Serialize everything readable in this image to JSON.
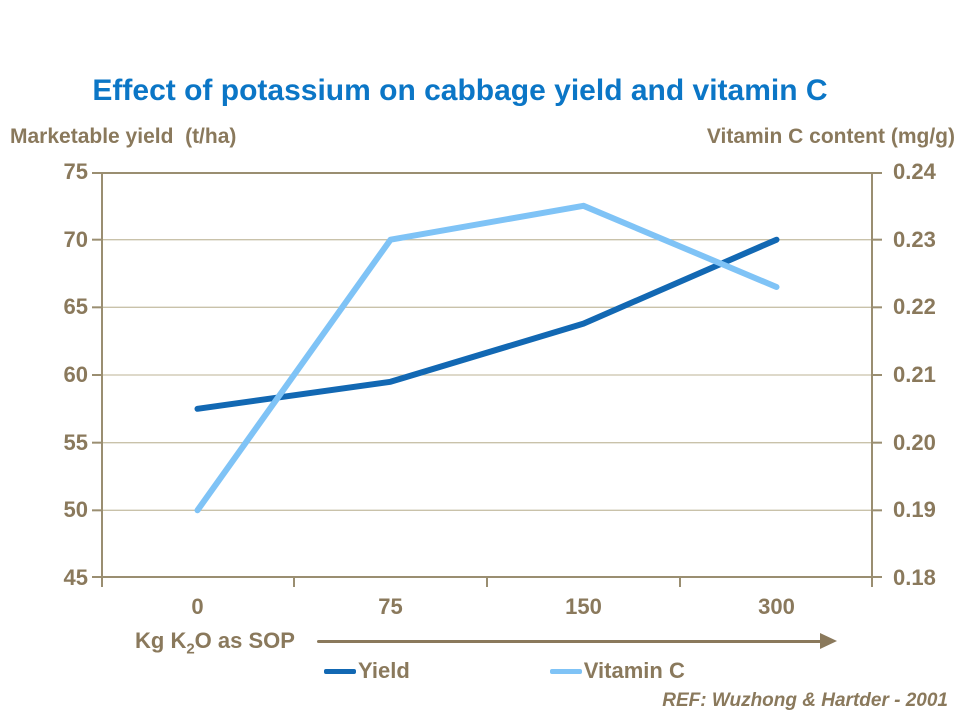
{
  "title": "Effect of potassium on cabbage yield and vitamin C",
  "left_axis": {
    "title": "Marketable yield  (t/ha)",
    "ticks": [
      "75",
      "70",
      "65",
      "60",
      "55",
      "50",
      "45"
    ]
  },
  "right_axis": {
    "title": "Vitamin C content (mg/g)",
    "ticks": [
      "0.24",
      "0.23",
      "0.22",
      "0.21",
      "0.20",
      "0.19",
      "0.18"
    ]
  },
  "x_axis": {
    "tick_labels": [
      "0",
      "75",
      "150",
      "300"
    ],
    "label_prefix": "Kg K",
    "label_sub": "2",
    "label_suffix": "O as SOP"
  },
  "legend": [
    {
      "label": "Yield",
      "color": "#1268B3"
    },
    {
      "label": "Vitamin C",
      "color": "#7FC3F6"
    }
  ],
  "reference": "REF: Wuzhong & Hartder - 2001",
  "colors": {
    "title_blue": "#0B76C6",
    "text_brown": "#8A795C",
    "axis": "#9A8E71",
    "gridline": "#C9C2AA",
    "background": "#FFFFFF",
    "yield_line": "#1268B3",
    "vitaminc_line": "#7FC3F6"
  },
  "chart_data": {
    "type": "line",
    "title": "Effect of potassium on cabbage yield and vitamin C",
    "categories": [
      0,
      75,
      150,
      300
    ],
    "series": [
      {
        "name": "Yield",
        "axis": "left",
        "color": "#1268B3",
        "values": [
          57.5,
          59.5,
          63.8,
          70.0
        ]
      },
      {
        "name": "Vitamin C",
        "axis": "right",
        "color": "#7FC3F6",
        "values": [
          0.19,
          0.23,
          0.235,
          0.223
        ]
      }
    ],
    "xlabel": "Kg K2O as SOP",
    "ylabel_left": "Marketable yield (t/ha)",
    "ylabel_right": "Vitamin C content (mg/g)",
    "ylim_left": [
      45,
      75
    ],
    "ylim_right": [
      0.18,
      0.24
    ],
    "y_tick_step_left": 5,
    "y_tick_step_right": 0.01,
    "grid": true,
    "legend_position": "bottom"
  }
}
